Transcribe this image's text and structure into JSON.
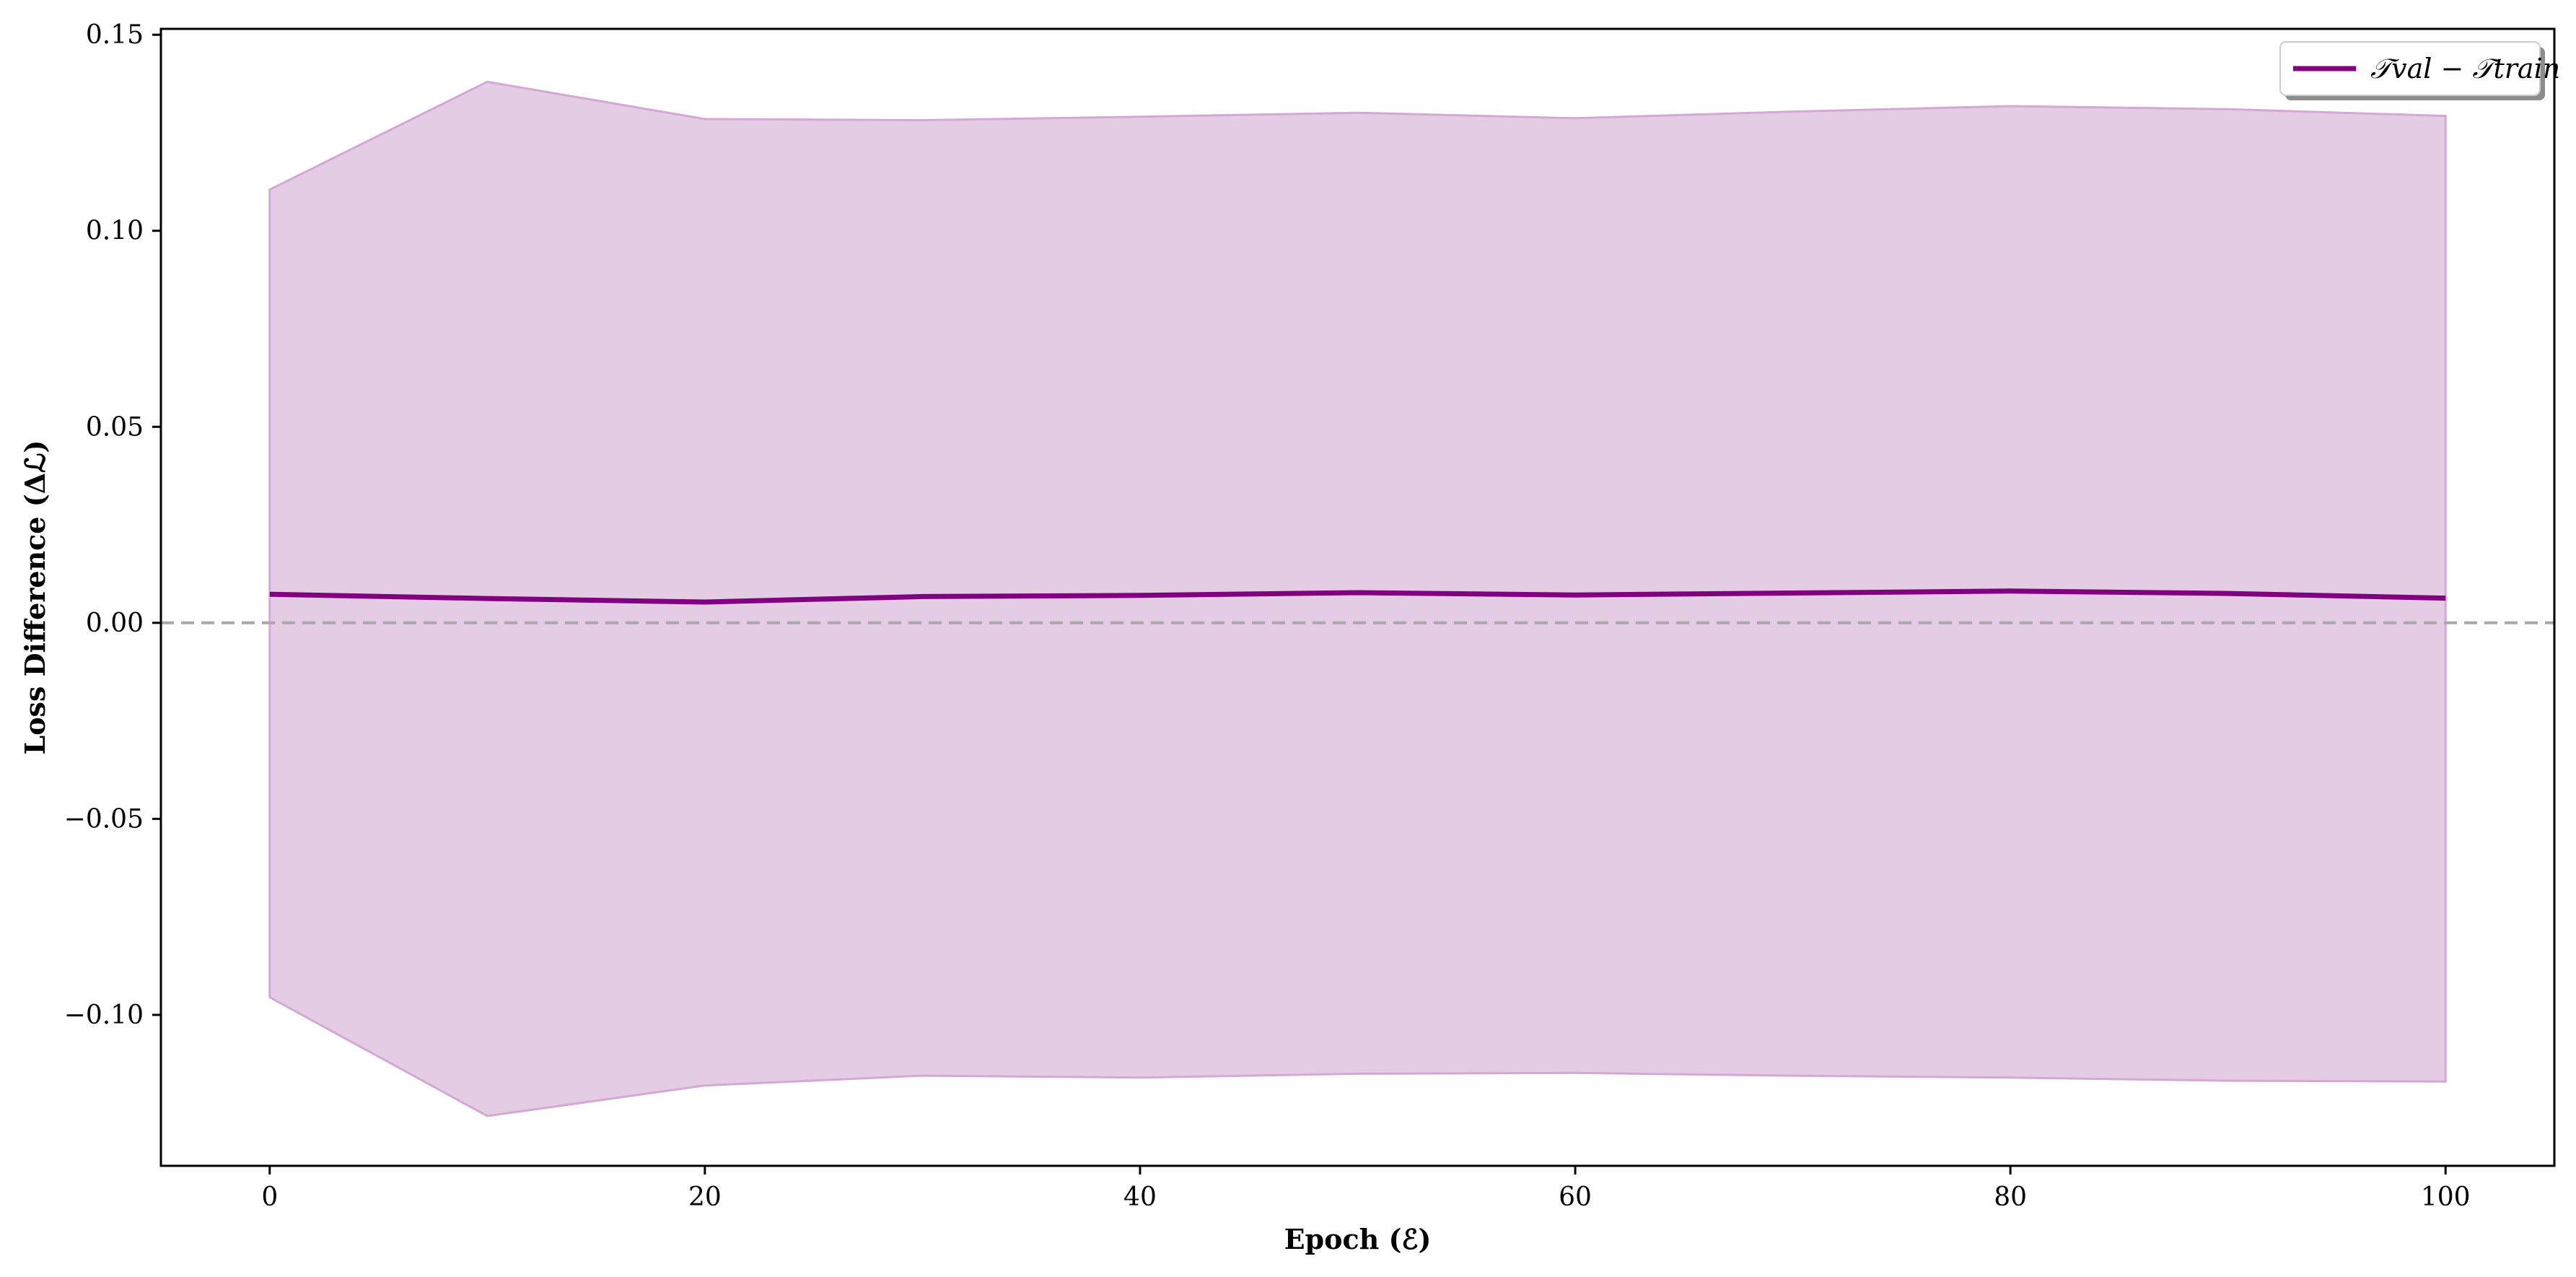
{
  "chart_data": {
    "type": "line",
    "x": [
      0,
      10,
      20,
      30,
      40,
      50,
      60,
      70,
      80,
      90,
      100
    ],
    "series": [
      {
        "name": "𝒯val − 𝒯train",
        "values": [
          0.0073,
          0.0062,
          0.0053,
          0.0067,
          0.007,
          0.0077,
          0.0071,
          0.0076,
          0.0081,
          0.0075,
          0.0063
        ],
        "band_upper": [
          0.1105,
          0.138,
          0.1285,
          0.1282,
          0.1291,
          0.1301,
          0.1287,
          0.1304,
          0.1318,
          0.131,
          0.1293
        ],
        "band_lower": [
          -0.0955,
          -0.1258,
          -0.118,
          -0.1155,
          -0.116,
          -0.115,
          -0.1148,
          -0.1155,
          -0.116,
          -0.1168,
          -0.117
        ],
        "color": "#800080",
        "band_color": "#e4cce4",
        "band_edge_color": "#d4a8d4"
      }
    ],
    "reference_line": {
      "y": 0.0,
      "style": "dashed",
      "color": "#a8a8a8"
    },
    "xlabel": "Epoch (ℰ)",
    "ylabel": "Loss Difference (Δℒ)",
    "x_ticks": [
      0,
      20,
      40,
      60,
      80,
      100
    ],
    "x_tick_labels": [
      "0",
      "20",
      "40",
      "60",
      "80",
      "100"
    ],
    "y_ticks": [
      -0.1,
      -0.05,
      0.0,
      0.05,
      0.1,
      0.15
    ],
    "y_tick_labels": [
      "−0.10",
      "−0.05",
      "0.00",
      "0.05",
      "0.10",
      "0.15"
    ],
    "xlim": [
      -5,
      105
    ],
    "ylim": [
      -0.1385,
      0.1515
    ],
    "grid": false,
    "legend_position": "top-right"
  }
}
